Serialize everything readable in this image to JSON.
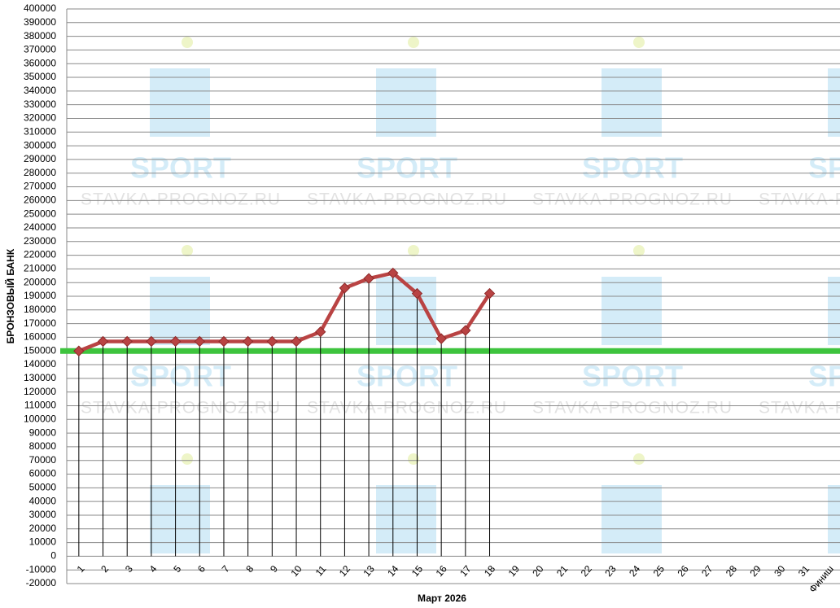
{
  "chart_data": {
    "type": "line",
    "y_label": "БРОНЗОВЫЙ БАНК",
    "x_label": "Март 2026",
    "watermark": [
      "SPORT",
      "STAVKA-PROGNOZ.RU"
    ],
    "categories": [
      "1",
      "2",
      "3",
      "4",
      "5",
      "6",
      "7",
      "8",
      "9",
      "10",
      "11",
      "12",
      "13",
      "14",
      "15",
      "16",
      "17",
      "18",
      "19",
      "20",
      "21",
      "22",
      "23",
      "24",
      "25",
      "26",
      "27",
      "28",
      "29",
      "30",
      "31",
      "Финиш"
    ],
    "series": [
      {
        "color": "#b94343",
        "values": [
          150000,
          157000,
          157000,
          157000,
          157000,
          157000,
          157000,
          157000,
          157000,
          157000,
          164000,
          196000,
          203000,
          207000,
          192000,
          159000,
          165000,
          192000,
          null,
          null,
          null,
          null,
          null,
          null,
          null,
          null,
          null,
          null,
          null,
          null,
          null,
          null
        ]
      }
    ],
    "reference_line": {
      "value": 150000,
      "color": "#3ec43e"
    },
    "drop_lines": true,
    "grid": true,
    "ylim": [
      -20000,
      400000
    ],
    "yticks": [
      -20000,
      -10000,
      0,
      10000,
      20000,
      30000,
      40000,
      50000,
      60000,
      70000,
      80000,
      90000,
      100000,
      110000,
      120000,
      130000,
      140000,
      150000,
      160000,
      170000,
      180000,
      190000,
      200000,
      210000,
      220000,
      230000,
      240000,
      250000,
      260000,
      270000,
      280000,
      290000,
      300000,
      310000,
      320000,
      330000,
      340000,
      350000,
      360000,
      370000,
      380000,
      390000,
      400000
    ]
  }
}
